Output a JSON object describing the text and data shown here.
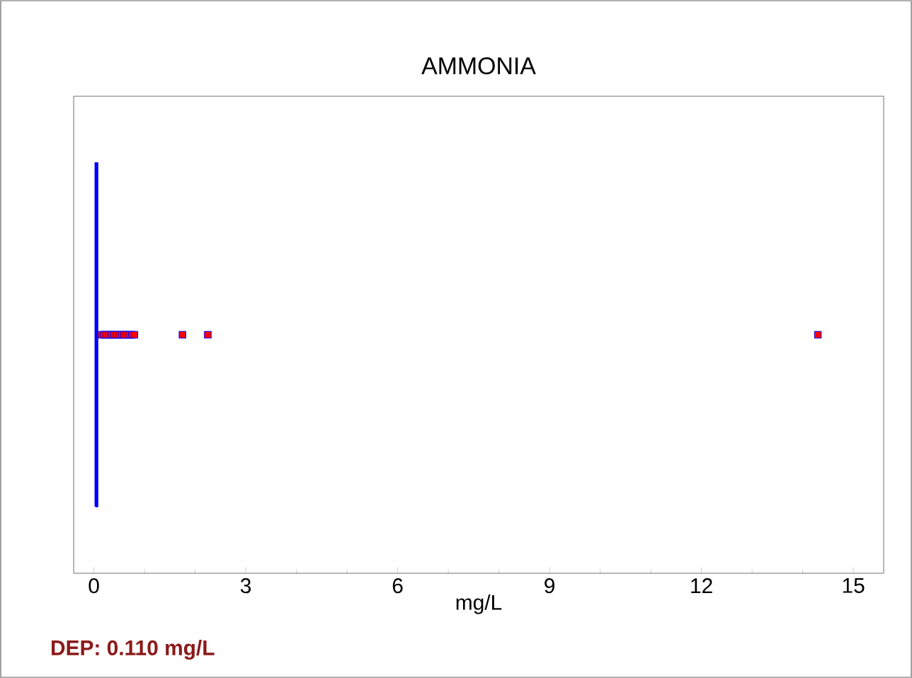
{
  "chart_data": {
    "type": "box",
    "title": "AMMONIA",
    "xlabel": "mg/L",
    "orientation": "horizontal",
    "categories": [
      null
    ],
    "series": [
      {
        "color": "#0000ff",
        "boxes": [
          {
            "q1": 0.03,
            "median": 0.05,
            "q3": 0.07,
            "outliers": [
              0.15,
              0.2,
              0.25,
              0.3,
              0.35,
              0.4,
              0.45,
              0.5,
              0.55,
              0.6,
              0.65,
              0.7,
              0.75,
              0.8,
              1.75,
              2.25,
              14.3
            ]
          }
        ]
      }
    ],
    "xlim": [
      -0.4,
      15.6
    ],
    "xticks": [
      0,
      3,
      6,
      9,
      12,
      15
    ],
    "marker": "square",
    "grid": false,
    "annotations": [
      "DEP: 0.110 mg/L"
    ]
  }
}
